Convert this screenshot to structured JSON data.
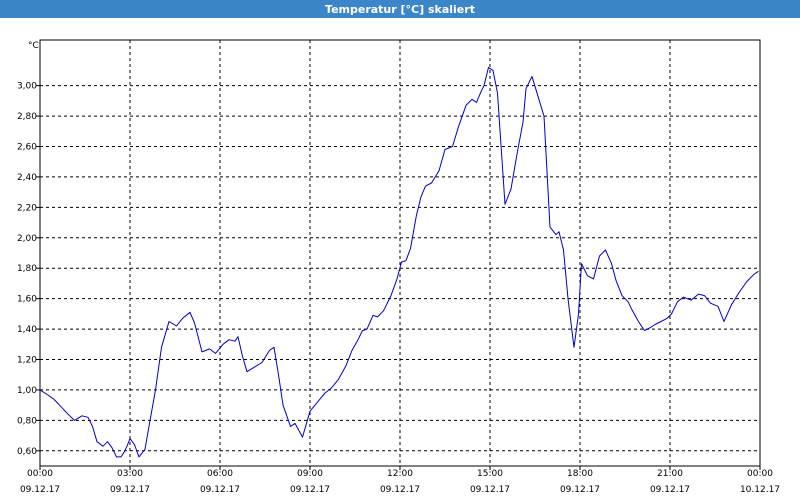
{
  "window": {
    "title": "Temperatur [°C] skaliert"
  },
  "chart_data": {
    "type": "line",
    "title": "Temperatur [°C] skaliert",
    "ylabel": "°C",
    "xlabel": "",
    "ylim": [
      0.5,
      3.3
    ],
    "xlim": [
      0,
      24
    ],
    "grid": true,
    "line_color": "#0000cc",
    "y_ticks": [
      {
        "v": 0.6,
        "label": "0,60"
      },
      {
        "v": 0.8,
        "label": "0,80"
      },
      {
        "v": 1.0,
        "label": "1,00"
      },
      {
        "v": 1.2,
        "label": "1,20"
      },
      {
        "v": 1.4,
        "label": "1,40"
      },
      {
        "v": 1.6,
        "label": "1,60"
      },
      {
        "v": 1.8,
        "label": "1,80"
      },
      {
        "v": 2.0,
        "label": "2,00"
      },
      {
        "v": 2.2,
        "label": "2,20"
      },
      {
        "v": 2.4,
        "label": "2,40"
      },
      {
        "v": 2.6,
        "label": "2,60"
      },
      {
        "v": 2.8,
        "label": "2,80"
      },
      {
        "v": 3.0,
        "label": "3,00"
      }
    ],
    "x_ticks": [
      {
        "v": 0,
        "time": "00:00",
        "date": "09.12.17"
      },
      {
        "v": 3,
        "time": "03:00",
        "date": "09.12.17"
      },
      {
        "v": 6,
        "time": "06:00",
        "date": "09.12.17"
      },
      {
        "v": 9,
        "time": "09:00",
        "date": "09.12.17"
      },
      {
        "v": 12,
        "time": "12:00",
        "date": "09.12.17"
      },
      {
        "v": 15,
        "time": "15:00",
        "date": "09.12.17"
      },
      {
        "v": 18,
        "time": "18:00",
        "date": "09.12.17"
      },
      {
        "v": 21,
        "time": "21:00",
        "date": "09.12.17"
      },
      {
        "v": 24,
        "time": "00:00",
        "date": "10.12.17"
      }
    ],
    "series": [
      {
        "x": [
          0.0,
          0.24,
          0.46,
          0.7,
          0.94,
          1.15,
          1.4,
          1.6,
          1.75,
          1.9,
          2.1,
          2.25,
          2.4,
          2.55,
          2.7,
          2.8,
          2.9,
          3.0,
          3.15,
          3.3,
          3.5,
          3.65,
          3.85,
          4.05,
          4.3,
          4.55,
          4.75,
          5.0,
          5.15,
          5.4,
          5.65,
          5.85,
          6.1,
          6.3,
          6.5,
          6.6,
          6.75,
          6.9,
          7.15,
          7.4,
          7.65,
          7.8,
          7.95,
          8.1,
          8.35,
          8.5,
          8.75,
          9.0,
          9.25,
          9.5,
          9.7,
          9.95,
          10.2,
          10.4,
          10.6,
          10.75,
          10.9,
          11.1,
          11.25,
          11.45,
          11.7,
          11.9,
          12.05,
          12.2,
          12.35,
          12.55,
          12.7,
          12.85,
          13.05,
          13.3,
          13.5,
          13.75,
          13.95,
          14.2,
          14.4,
          14.55,
          14.7,
          14.8,
          14.95,
          15.1,
          15.25,
          15.5,
          15.7,
          15.9,
          16.1,
          16.2,
          16.4,
          16.6,
          16.8,
          17.0,
          17.2,
          17.3,
          17.45,
          17.6,
          17.8,
          17.95,
          18.05,
          18.25,
          18.45,
          18.65,
          18.85,
          19.05,
          19.2,
          19.4,
          19.6,
          19.75,
          19.95,
          20.15,
          20.35,
          20.5,
          20.7,
          20.9,
          21.05,
          21.25,
          21.45,
          21.7,
          21.95,
          22.15,
          22.35,
          22.6,
          22.8,
          23.05,
          23.3,
          23.55,
          23.8,
          23.95
        ],
        "y": [
          1.0,
          0.97,
          0.94,
          0.89,
          0.84,
          0.8,
          0.83,
          0.82,
          0.76,
          0.66,
          0.63,
          0.66,
          0.62,
          0.56,
          0.56,
          0.59,
          0.63,
          0.68,
          0.64,
          0.56,
          0.61,
          0.78,
          1.0,
          1.28,
          1.45,
          1.42,
          1.47,
          1.51,
          1.44,
          1.25,
          1.27,
          1.24,
          1.3,
          1.33,
          1.32,
          1.35,
          1.22,
          1.12,
          1.15,
          1.18,
          1.26,
          1.28,
          1.1,
          0.9,
          0.76,
          0.78,
          0.69,
          0.86,
          0.92,
          0.98,
          1.01,
          1.07,
          1.16,
          1.26,
          1.33,
          1.39,
          1.4,
          1.49,
          1.48,
          1.52,
          1.62,
          1.73,
          1.84,
          1.85,
          1.93,
          2.15,
          2.27,
          2.34,
          2.36,
          2.44,
          2.58,
          2.6,
          2.73,
          2.87,
          2.91,
          2.89,
          2.96,
          3.0,
          3.12,
          3.1,
          2.95,
          2.22,
          2.32,
          2.55,
          2.76,
          2.98,
          3.06,
          2.93,
          2.8,
          2.07,
          2.02,
          2.04,
          1.92,
          1.6,
          1.28,
          1.5,
          1.83,
          1.75,
          1.73,
          1.88,
          1.92,
          1.83,
          1.72,
          1.62,
          1.58,
          1.52,
          1.45,
          1.39,
          1.41,
          1.43,
          1.45,
          1.47,
          1.5,
          1.58,
          1.61,
          1.59,
          1.63,
          1.62,
          1.57,
          1.55,
          1.45,
          1.56,
          1.64,
          1.71,
          1.76,
          1.78
        ]
      }
    ]
  }
}
